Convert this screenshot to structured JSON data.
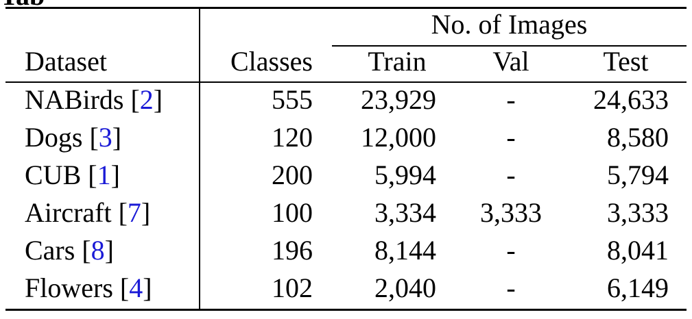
{
  "caption_fragment": "Tab",
  "group_header": "No. of Images",
  "columns": {
    "dataset": "Dataset",
    "classes": "Classes",
    "train": "Train",
    "val": "Val",
    "test": "Test"
  },
  "rows": [
    {
      "name": "NABirds",
      "ref": "2",
      "classes": "555",
      "train": "23,929",
      "val": "-",
      "test": "24,633"
    },
    {
      "name": "Dogs",
      "ref": "3",
      "classes": "120",
      "train": "12,000",
      "val": "-",
      "test": "8,580"
    },
    {
      "name": "CUB",
      "ref": "1",
      "classes": "200",
      "train": "5,994",
      "val": "-",
      "test": "5,794"
    },
    {
      "name": "Aircraft",
      "ref": "7",
      "classes": "100",
      "train": "3,334",
      "val": "3,333",
      "test": "3,333"
    },
    {
      "name": "Cars",
      "ref": "8",
      "classes": "196",
      "train": "8,144",
      "val": "-",
      "test": "8,041"
    },
    {
      "name": "Flowers",
      "ref": "4",
      "classes": "102",
      "train": "2,040",
      "val": "-",
      "test": "6,149"
    }
  ],
  "colors": {
    "text": "#000000",
    "reference_link": "#1a1ad6"
  }
}
